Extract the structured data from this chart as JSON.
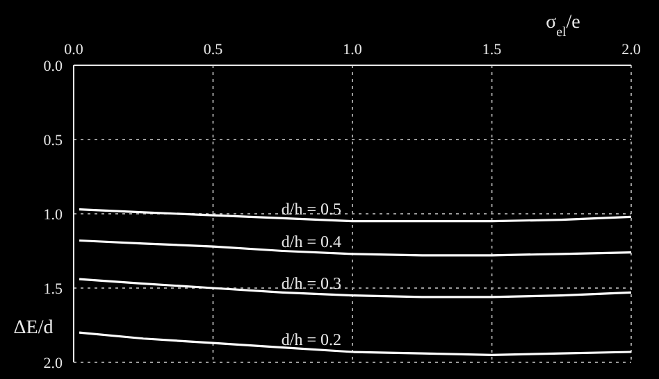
{
  "chart_data": {
    "type": "line",
    "xlabel": "σ$_{el}$/e",
    "ylabel": "ΔE/d",
    "x": [
      0.02,
      0.25,
      0.5,
      0.75,
      1.0,
      1.25,
      1.5,
      1.75,
      2.0
    ],
    "series": [
      {
        "name": "d/h = 0.5",
        "color": "#ffffff",
        "values": [
          0.97,
          0.99,
          1.01,
          1.03,
          1.05,
          1.05,
          1.05,
          1.04,
          1.02
        ]
      },
      {
        "name": "d/h = 0.4",
        "color": "#ffffff",
        "values": [
          1.18,
          1.2,
          1.22,
          1.25,
          1.27,
          1.28,
          1.28,
          1.27,
          1.26
        ]
      },
      {
        "name": "d/h = 0.3",
        "color": "#ffffff",
        "values": [
          1.44,
          1.47,
          1.5,
          1.53,
          1.55,
          1.56,
          1.56,
          1.55,
          1.53
        ]
      },
      {
        "name": "d/h = 0.2",
        "color": "#ffffff",
        "values": [
          1.8,
          1.84,
          1.87,
          1.9,
          1.93,
          1.94,
          1.95,
          1.94,
          1.93
        ]
      }
    ],
    "xlim": [
      0,
      2
    ],
    "ylim": [
      2,
      0
    ],
    "xticks": [
      {
        "value": 0,
        "label": "0.0"
      },
      {
        "value": 0.5,
        "label": "0.5"
      },
      {
        "value": 1,
        "label": "1.0"
      },
      {
        "value": 1.5,
        "label": "1.5"
      },
      {
        "value": 2,
        "label": "2.0"
      }
    ],
    "yticks": [
      {
        "value": 0,
        "label": "0.0"
      },
      {
        "value": 0.5,
        "label": "0.5"
      },
      {
        "value": 1,
        "label": "1.0"
      },
      {
        "value": 1.5,
        "label": "1.5"
      },
      {
        "value": 2,
        "label": "2.0"
      }
    ],
    "grid": true,
    "legend": false,
    "marker": "none",
    "line_style": "solid"
  }
}
